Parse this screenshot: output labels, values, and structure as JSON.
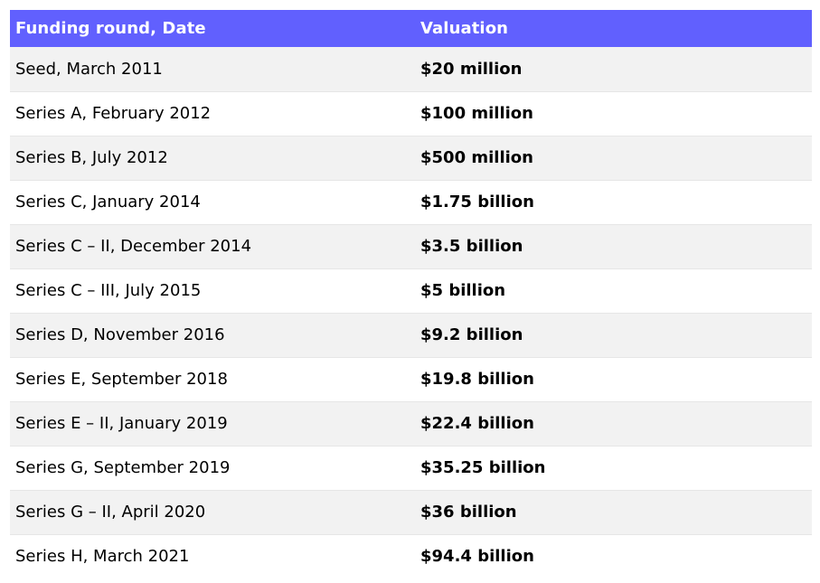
{
  "table": {
    "headers": {
      "round": "Funding round, Date",
      "valuation": "Valuation"
    },
    "header_color": "#6160fe",
    "stripe_color": "#f2f2f2",
    "rows": [
      {
        "round": "Seed, March 2011",
        "valuation": "$20 million"
      },
      {
        "round": "Series A, February 2012",
        "valuation": "$100 million"
      },
      {
        "round": "Series B, July 2012",
        "valuation": "$500 million"
      },
      {
        "round": "Series C, January 2014",
        "valuation": "$1.75 billion"
      },
      {
        "round": "Series C – II, December 2014",
        "valuation": "$3.5 billion"
      },
      {
        "round": "Series C – III, July 2015",
        "valuation": "$5 billion"
      },
      {
        "round": "Series D, November 2016",
        "valuation": "$9.2 billion"
      },
      {
        "round": "Series E, September 2018",
        "valuation": "$19.8 billion"
      },
      {
        "round": "Series E – II, January 2019",
        "valuation": "$22.4 billion"
      },
      {
        "round": "Series G, September 2019",
        "valuation": "$35.25 billion"
      },
      {
        "round": "Series G – II, April 2020",
        "valuation": "$36 billion"
      },
      {
        "round": "Series H, March 2021",
        "valuation": "$94.4 billion"
      }
    ]
  }
}
